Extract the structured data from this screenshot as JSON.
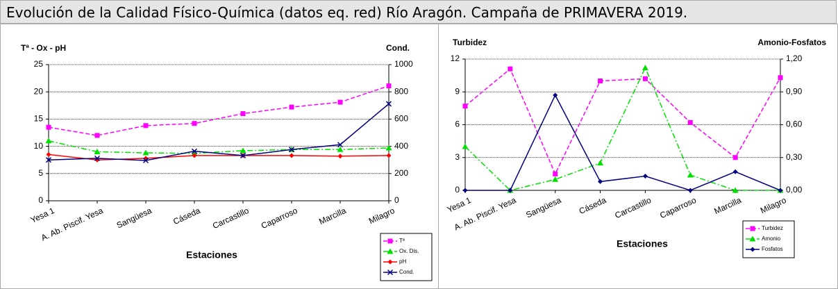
{
  "title": "Evolución de la Calidad Físico-Química (datos eq. red) Río Aragón. Campaña de PRIMAVERA 2019.",
  "chart_data": [
    {
      "type": "line",
      "y_label": "Tª - Ox - pH",
      "y2_label": "Cond.",
      "x_label": "Estaciones",
      "categories": [
        "Yesa 1",
        "A. Ab. Piscif. Yesa",
        "Sangüesa",
        "Cáseda",
        "Carcastillo",
        "Caparroso",
        "Marcilla",
        "Milagro"
      ],
      "ylim": [
        0,
        25
      ],
      "yticks": [
        0,
        5,
        10,
        15,
        20,
        25
      ],
      "y2lim": [
        0,
        1000
      ],
      "y2ticks": [
        0,
        200,
        400,
        600,
        800,
        1000
      ],
      "grid": true,
      "legend": "lower right",
      "series": [
        {
          "name": "Tª",
          "color": "#ff00ff",
          "dash": "dashed",
          "marker": "square",
          "values": [
            13.5,
            12,
            13.8,
            14.2,
            16,
            17.2,
            18.1,
            21.1
          ]
        },
        {
          "name": "Ox. Dis.",
          "color": "#00e000",
          "dash": "dashdot",
          "marker": "triangle",
          "values": [
            11,
            9,
            8.8,
            8.7,
            9.2,
            9.4,
            9.4,
            9.7
          ]
        },
        {
          "name": "pH",
          "color": "#ff0000",
          "dash": "solid",
          "marker": "diamond",
          "values": [
            8.5,
            7.5,
            7.8,
            8.3,
            8.3,
            8.3,
            8.2,
            8.3
          ]
        },
        {
          "name": "Cond.",
          "color": "#000080",
          "dash": "solid",
          "marker": "x",
          "axis": "y2",
          "values": [
            300,
            312,
            296,
            364,
            332,
            376,
            412,
            712
          ]
        }
      ]
    },
    {
      "type": "line",
      "y_label": "Turbidez",
      "y2_label": "Amonio-Fosfatos",
      "x_label": "Estaciones",
      "categories": [
        "Yesa 1",
        "A. Ab. Piscif. Yesa",
        "Sangüesa",
        "Cáseda",
        "Carcastillo",
        "Caparroso",
        "Marcilla",
        "Milagro"
      ],
      "ylim": [
        0,
        12
      ],
      "yticks": [
        0,
        3,
        6,
        9,
        12
      ],
      "y2lim": [
        0,
        1.2
      ],
      "y2ticks": [
        {
          "value": 0,
          "label": "0,00"
        },
        {
          "value": 0.3,
          "label": "0,30"
        },
        {
          "value": 0.6,
          "label": "0,60"
        },
        {
          "value": 0.9,
          "label": "0,90"
        },
        {
          "value": 1.2,
          "label": "1,20"
        }
      ],
      "grid": true,
      "legend": "lower right",
      "series": [
        {
          "name": "Turbidez",
          "color": "#ff00ff",
          "dash": "dashed",
          "marker": "square",
          "values": [
            7.7,
            11.1,
            1.5,
            10,
            10.2,
            6.2,
            3,
            10.3
          ]
        },
        {
          "name": "Amonio",
          "color": "#00e000",
          "dash": "dashdot",
          "marker": "triangle",
          "axis": "y2",
          "values": [
            0.4,
            0,
            0.1,
            0.25,
            1.12,
            0.14,
            0,
            0
          ]
        },
        {
          "name": "Fosfatos",
          "color": "#000080",
          "dash": "solid",
          "marker": "diamond",
          "axis": "y2",
          "values": [
            0,
            0,
            0.87,
            0.08,
            0.13,
            0,
            0.17,
            0
          ]
        }
      ]
    }
  ]
}
